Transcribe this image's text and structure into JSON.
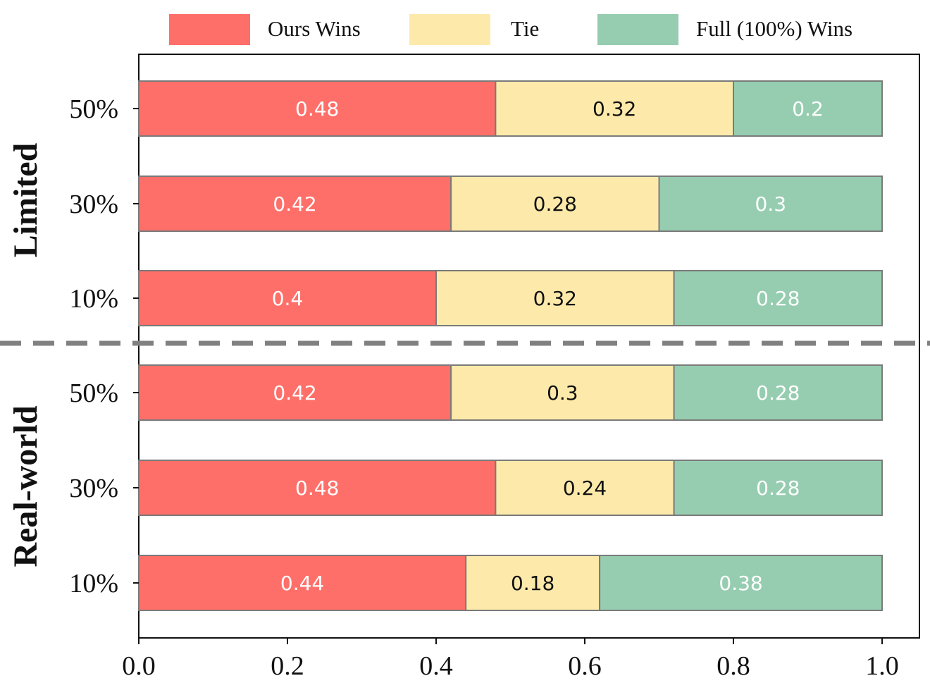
{
  "chart_data": {
    "type": "bar",
    "orientation": "horizontal",
    "stacked": true,
    "xlim": [
      0,
      1.0
    ],
    "x_ticks": [
      "0.0",
      "0.2",
      "0.4",
      "0.6",
      "0.8",
      "1.0"
    ],
    "legend_position": "top",
    "colors": {
      "ours": "#ff6f69",
      "tie": "#fdeaaa",
      "full": "#96cdb0",
      "divider": "#808080"
    },
    "series": [
      {
        "name": "Ours Wins",
        "color_key": "ours",
        "label_color": "#ffffff"
      },
      {
        "name": "Tie",
        "color_key": "tie",
        "label_color": "#111111"
      },
      {
        "name": "Full (100%) Wins",
        "color_key": "full",
        "label_color": "#ffffff"
      }
    ],
    "groups": [
      {
        "name": "Limited",
        "rows": [
          {
            "label": "50%",
            "values": [
              0.48,
              0.32,
              0.2
            ],
            "value_labels": [
              "0.48",
              "0.32",
              "0.2"
            ]
          },
          {
            "label": "30%",
            "values": [
              0.42,
              0.28,
              0.3
            ],
            "value_labels": [
              "0.42",
              "0.28",
              "0.3"
            ]
          },
          {
            "label": "10%",
            "values": [
              0.4,
              0.32,
              0.28
            ],
            "value_labels": [
              "0.4",
              "0.32",
              "0.28"
            ]
          }
        ]
      },
      {
        "name": "Real-world",
        "rows": [
          {
            "label": "50%",
            "values": [
              0.42,
              0.3,
              0.28
            ],
            "value_labels": [
              "0.42",
              "0.3",
              "0.28"
            ]
          },
          {
            "label": "30%",
            "values": [
              0.48,
              0.24,
              0.28
            ],
            "value_labels": [
              "0.48",
              "0.24",
              "0.28"
            ]
          },
          {
            "label": "10%",
            "values": [
              0.44,
              0.18,
              0.38
            ],
            "value_labels": [
              "0.44",
              "0.18",
              "0.38"
            ]
          }
        ]
      }
    ]
  }
}
